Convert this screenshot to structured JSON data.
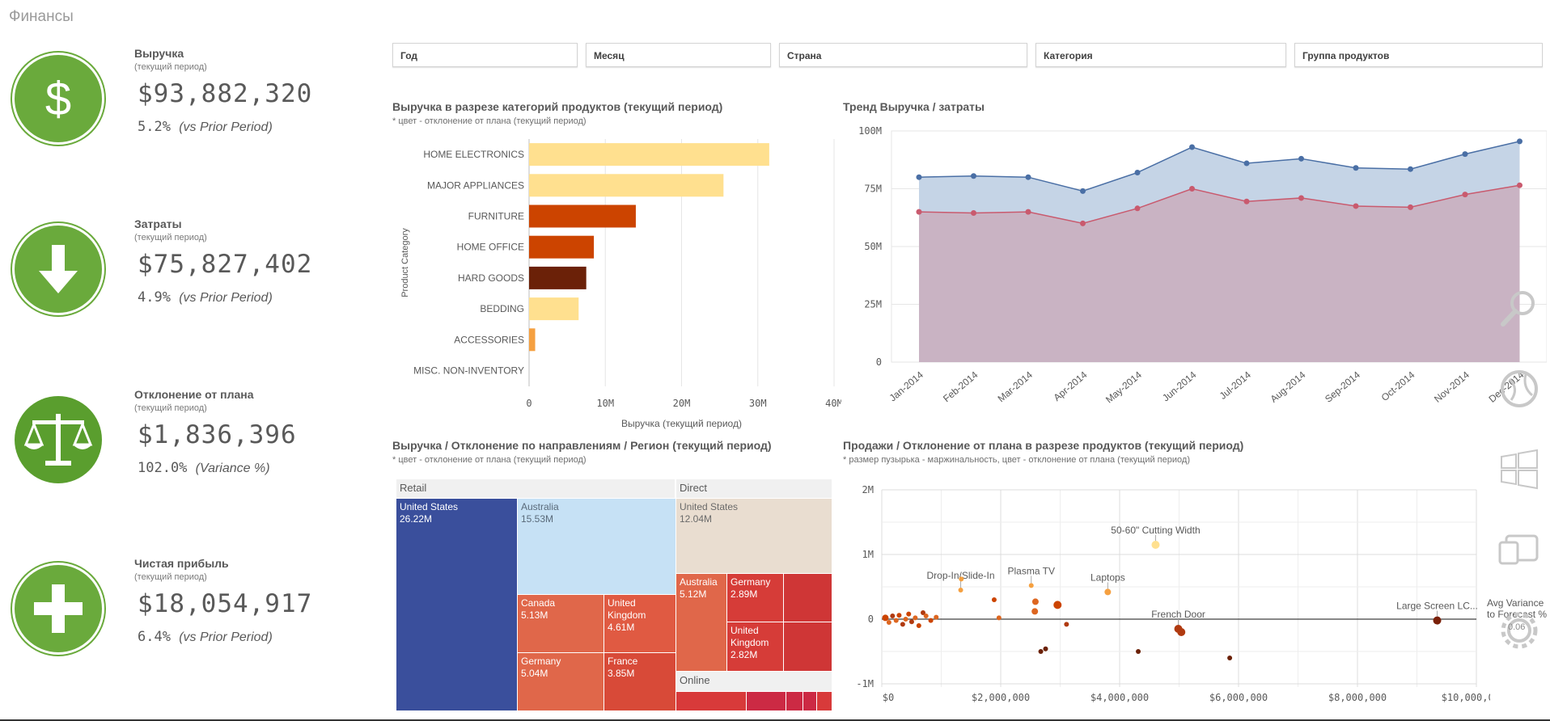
{
  "app": {
    "title": "Финансы"
  },
  "kpis": [
    {
      "title": "Выручка",
      "subtitle": "(текущий период)",
      "value": "$93,882,320",
      "change": "5.2%",
      "change_note": "(vs Prior Period)",
      "icon": "dollar-icon"
    },
    {
      "title": "Затраты",
      "subtitle": "(текущий период)",
      "value": "$75,827,402",
      "change": "4.9%",
      "change_note": "(vs Prior Period)",
      "icon": "arrow-down-icon"
    },
    {
      "title": "Отклонение от плана",
      "subtitle": "(текущий период)",
      "value": "$1,836,396",
      "change": "102.0%",
      "change_note": "(Variance %)",
      "icon": "scales-icon"
    },
    {
      "title": "Чистая прибыль",
      "subtitle": "(текущий период)",
      "value": "$18,054,917",
      "change": "6.4%",
      "change_note": "(vs Prior Period)",
      "icon": "plus-icon"
    }
  ],
  "filters": [
    {
      "label": "Год"
    },
    {
      "label": "Месяц"
    },
    {
      "label": "Страна"
    },
    {
      "label": "Категория"
    },
    {
      "label": "Группа продуктов"
    }
  ],
  "colors": {
    "accent_green": "#6aaa3c",
    "revenue_line": "#4a6fa5",
    "revenue_fill": "#c5d4e6",
    "cost_line": "#c95a6e",
    "cost_fill": "#c9b3c3"
  },
  "side_icons": [
    "search-icon",
    "globe-icon",
    "windows-icon",
    "devices-icon",
    "gear-icon"
  ],
  "side_overlay_text": "Avg Variance to Forecast %",
  "side_overlay_value": "0.06",
  "chart_data": [
    {
      "id": "bar",
      "type": "bar",
      "title": "Выручка в разрезе категорий продуктов (текущий период)",
      "subtitle": "* цвет - отклонение от плана (текущий период)",
      "ylabel": "Product Category",
      "xlabel": "Выручка (текущий период)",
      "categories": [
        "HOME ELECTRONICS",
        "MAJOR APPLIANCES",
        "FURNITURE",
        "HOME OFFICE",
        "HARD GOODS",
        "BEDDING",
        "ACCESSORIES",
        "MISC. NON-INVENTORY"
      ],
      "values": [
        31.5,
        25.5,
        14,
        8.5,
        7.5,
        6.5,
        0.8,
        0
      ],
      "colors": [
        "#ffe08f",
        "#ffe08f",
        "#cc4400",
        "#cc4400",
        "#6b2108",
        "#ffe08f",
        "#f5a040",
        "#ffe08f"
      ],
      "xlim": [
        0,
        40
      ],
      "xticks": [
        "0",
        "10M",
        "20M",
        "30M",
        "40M"
      ]
    },
    {
      "id": "trend",
      "type": "area",
      "title": "Тренд Выручка / затраты",
      "categories": [
        "Jan-2014",
        "Feb-2014",
        "Mar-2014",
        "Apr-2014",
        "May-2014",
        "Jun-2014",
        "Jul-2014",
        "Aug-2014",
        "Sep-2014",
        "Oct-2014",
        "Nov-2014",
        "Dec-2014"
      ],
      "series": [
        {
          "name": "Выручка",
          "values": [
            80,
            80.5,
            80,
            74,
            82,
            93,
            86,
            88,
            84,
            83.5,
            90,
            95.5
          ]
        },
        {
          "name": "Затраты",
          "values": [
            65,
            64.5,
            65,
            60,
            66.5,
            75,
            69.5,
            71,
            67.5,
            67,
            72.5,
            76.5
          ]
        }
      ],
      "ylim": [
        0,
        100
      ],
      "yticks": [
        "100M",
        "75M",
        "50M",
        "25M",
        "0"
      ]
    },
    {
      "id": "treemap",
      "type": "treemap",
      "title": "Выручка / Отклонение по направлениям / Регион (текущий период)",
      "subtitle": "* цвет - отклонение от плана (текущий период)",
      "groups": [
        {
          "name": "Retail",
          "items": [
            {
              "name": "United States",
              "value": "26.22M"
            },
            {
              "name": "Australia",
              "value": "15.53M"
            },
            {
              "name": "Canada",
              "value": "5.13M"
            },
            {
              "name": "United Kingdom",
              "value": "4.61M"
            },
            {
              "name": "Germany",
              "value": "5.04M"
            },
            {
              "name": "France",
              "value": "3.85M"
            }
          ]
        },
        {
          "name": "Direct",
          "items": [
            {
              "name": "United States",
              "value": "12.04M"
            },
            {
              "name": "Australia",
              "value": "5.12M"
            },
            {
              "name": "Germany",
              "value": "2.89M"
            },
            {
              "name": "United Kingdom",
              "value": "2.82M"
            }
          ]
        },
        {
          "name": "Online",
          "items": []
        }
      ]
    },
    {
      "id": "scatter",
      "type": "scatter",
      "title": "Продажи / Отклонение от плана в разрезе продуктов (текущий период)",
      "subtitle": "* размер пузырька - маржинальность, цвет - отклонение от плана (текущий период)",
      "xlim": [
        0,
        10000000
      ],
      "ylim": [
        -1,
        2
      ],
      "xticks": [
        "$0",
        "$2,000,000",
        "$4,000,000",
        "$6,000,000",
        "$8,000,000",
        "$10,000,0..."
      ],
      "yticks": [
        "2M",
        "1M",
        "0",
        "-1M"
      ],
      "points": [
        {
          "x": 4580000,
          "y": 1.15,
          "r": 5,
          "color": "#ffe08f",
          "label": "50-60\" Cutting Width"
        },
        {
          "x": 1320000,
          "y": 0.45,
          "r": 3,
          "color": "#f5a040",
          "label": "Drop-In/Slide-In"
        },
        {
          "x": 1330000,
          "y": 0.62,
          "r": 3,
          "color": "#f5a040",
          "label": ""
        },
        {
          "x": 2500000,
          "y": 0.52,
          "r": 3,
          "color": "#f5a040",
          "label": "Plasma TV"
        },
        {
          "x": 3780000,
          "y": 0.42,
          "r": 4,
          "color": "#f5a040",
          "label": "Laptops"
        },
        {
          "x": 4960000,
          "y": -0.15,
          "r": 5,
          "color": "#b03a10",
          "label": "French Door"
        },
        {
          "x": 5010000,
          "y": -0.2,
          "r": 5,
          "color": "#b03a10",
          "label": ""
        },
        {
          "x": 9290000,
          "y": -0.02,
          "r": 5,
          "color": "#7a2008",
          "label": "Large Screen LC..."
        },
        {
          "x": 1880000,
          "y": 0.3,
          "r": 3,
          "color": "#cc4400",
          "label": ""
        },
        {
          "x": 1960000,
          "y": 0.02,
          "r": 3,
          "color": "#dd6620",
          "label": ""
        },
        {
          "x": 2570000,
          "y": 0.27,
          "r": 4,
          "color": "#dd6620",
          "label": ""
        },
        {
          "x": 2560000,
          "y": 0.12,
          "r": 4,
          "color": "#dd6620",
          "label": ""
        },
        {
          "x": 2940000,
          "y": 0.22,
          "r": 5,
          "color": "#cc4400",
          "label": ""
        },
        {
          "x": 3090000,
          "y": -0.08,
          "r": 3,
          "color": "#b03a10",
          "label": ""
        },
        {
          "x": 2660000,
          "y": -0.5,
          "r": 3,
          "color": "#6b2108",
          "label": ""
        },
        {
          "x": 2740000,
          "y": -0.46,
          "r": 3,
          "color": "#6b2108",
          "label": ""
        },
        {
          "x": 4290000,
          "y": -0.5,
          "r": 3,
          "color": "#6b2108",
          "label": ""
        },
        {
          "x": 5820000,
          "y": -0.6,
          "r": 3,
          "color": "#6b2108",
          "label": ""
        },
        {
          "x": 60000,
          "y": 0.02,
          "r": 4,
          "color": "#cc4400",
          "label": ""
        },
        {
          "x": 120000,
          "y": -0.05,
          "r": 3,
          "color": "#dd6620",
          "label": ""
        },
        {
          "x": 180000,
          "y": 0.05,
          "r": 3,
          "color": "#b03a10",
          "label": ""
        },
        {
          "x": 240000,
          "y": -0.02,
          "r": 3,
          "color": "#dd6620",
          "label": ""
        },
        {
          "x": 290000,
          "y": 0.06,
          "r": 3,
          "color": "#cc4400",
          "label": ""
        },
        {
          "x": 350000,
          "y": -0.08,
          "r": 3,
          "color": "#b03a10",
          "label": ""
        },
        {
          "x": 400000,
          "y": 0.0,
          "r": 3,
          "color": "#dd6620",
          "label": ""
        },
        {
          "x": 450000,
          "y": 0.08,
          "r": 3,
          "color": "#cc4400",
          "label": ""
        },
        {
          "x": 500000,
          "y": -0.04,
          "r": 3,
          "color": "#b03a10",
          "label": ""
        },
        {
          "x": 560000,
          "y": 0.02,
          "r": 3,
          "color": "#dd6620",
          "label": ""
        },
        {
          "x": 620000,
          "y": -0.1,
          "r": 3,
          "color": "#cc4400",
          "label": ""
        },
        {
          "x": 690000,
          "y": 0.1,
          "r": 3,
          "color": "#b03a10",
          "label": ""
        },
        {
          "x": 740000,
          "y": 0.05,
          "r": 3,
          "color": "#dd6620",
          "label": ""
        },
        {
          "x": 820000,
          "y": -0.02,
          "r": 3,
          "color": "#cc4400",
          "label": ""
        },
        {
          "x": 910000,
          "y": 0.03,
          "r": 3,
          "color": "#dd6620",
          "label": ""
        }
      ]
    }
  ]
}
